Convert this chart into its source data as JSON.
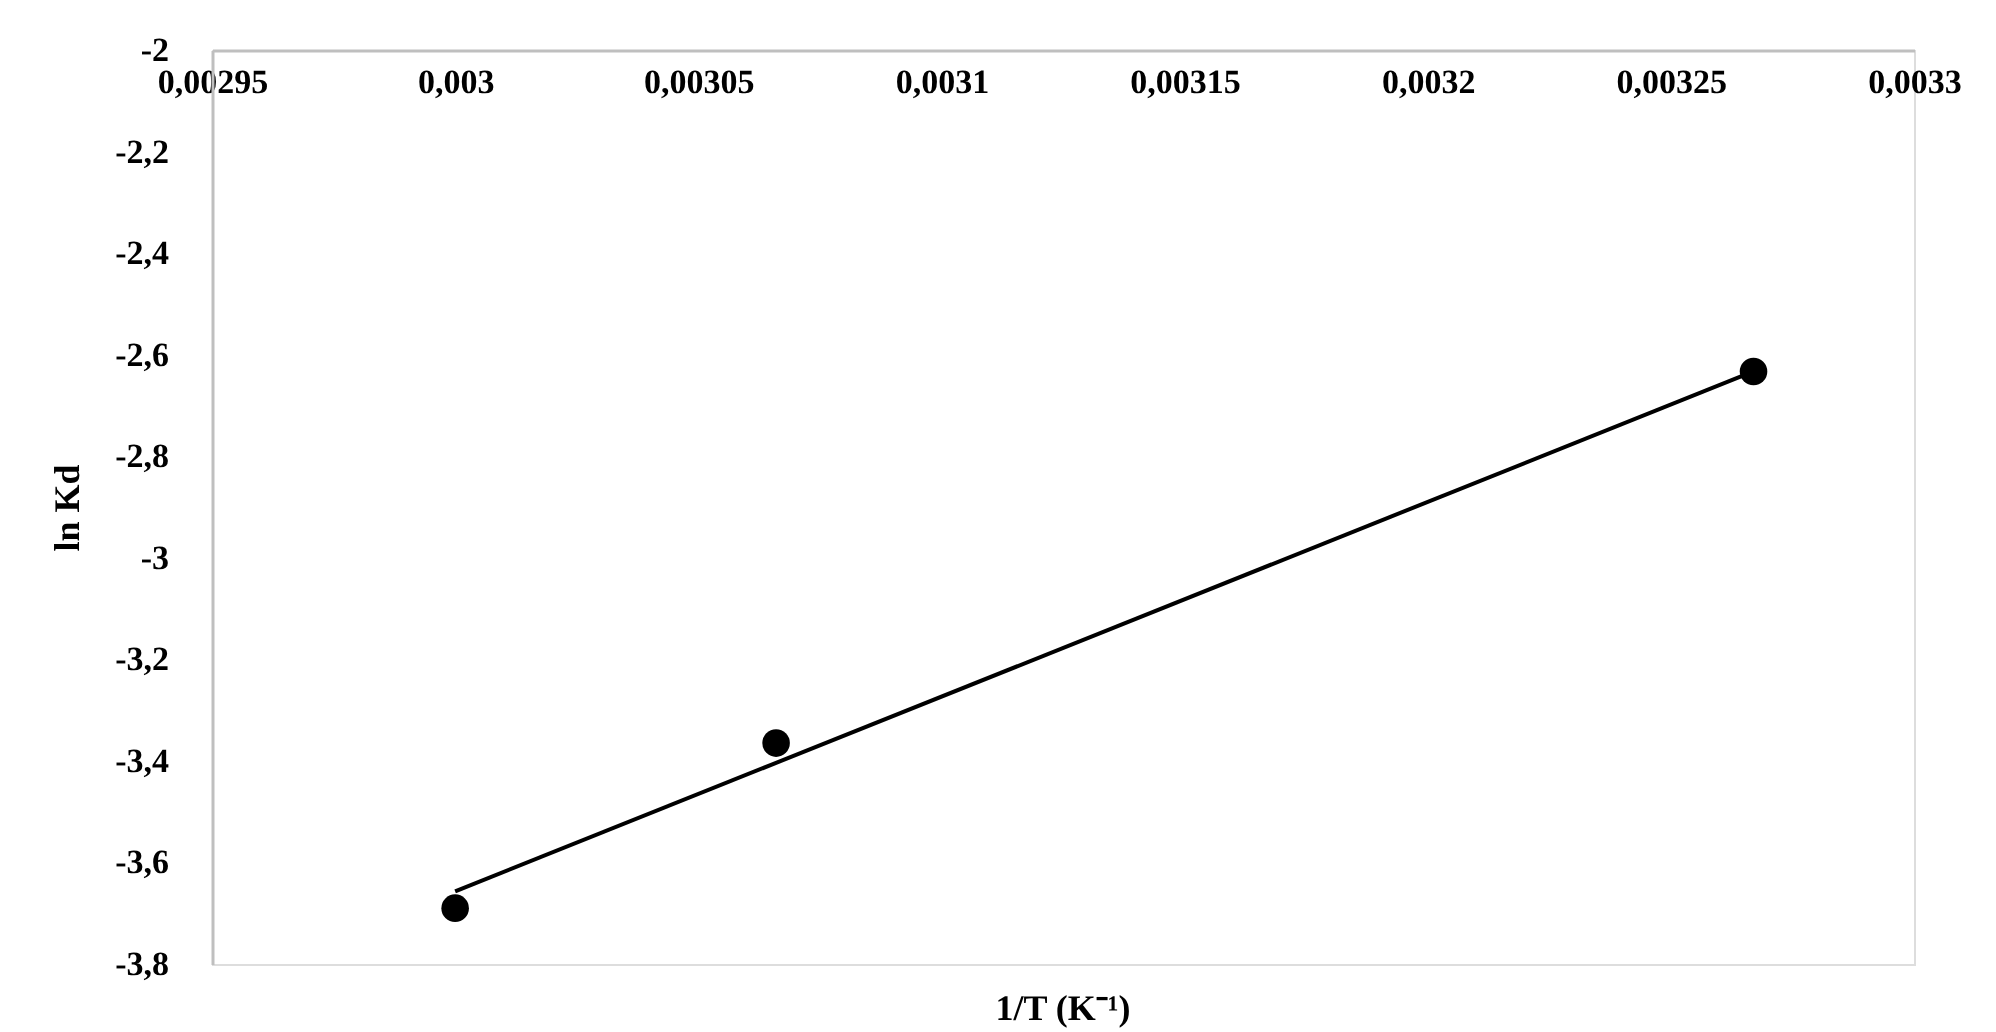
{
  "chart_data": {
    "type": "scatter",
    "xlabel": "1/T (K⁻¹)",
    "ylabel": "ln Kd",
    "x": [
      0.003,
      0.003066,
      0.003267
    ],
    "series": [
      {
        "color": "#000000",
        "marker": "circle",
        "values": [
          -3.69,
          -3.365,
          -2.633
        ]
      },
      {
        "type": "line",
        "color": "#000000",
        "line_style": "solid",
        "x": [
          0.003,
          0.003267
        ],
        "values": [
          -3.657,
          -2.633
        ]
      }
    ],
    "xlim": [
      0.00295,
      0.0033
    ],
    "xticks": [
      {
        "value": 0.00295,
        "label": "0,00295"
      },
      {
        "value": 0.003,
        "label": "0,003"
      },
      {
        "value": 0.00305,
        "label": "0,00305"
      },
      {
        "value": 0.0031,
        "label": "0,0031"
      },
      {
        "value": 0.00315,
        "label": "0,00315"
      },
      {
        "value": 0.0032,
        "label": "0,0032"
      },
      {
        "value": 0.00325,
        "label": "0,00325"
      },
      {
        "value": 0.0033,
        "label": "0,0033"
      }
    ],
    "ylim": [
      -3.8,
      -2
    ],
    "yticks": [
      -2,
      {
        "value": -2.2,
        "label": "-2,2"
      },
      {
        "value": -2.4,
        "label": "-2,4"
      },
      {
        "value": -2.6,
        "label": "-2,6"
      },
      {
        "value": -2.8,
        "label": "-2,8"
      },
      -3,
      {
        "value": -3.2,
        "label": "-3,2"
      },
      {
        "value": -3.4,
        "label": "-3,4"
      },
      {
        "value": -3.6,
        "label": "-3,6"
      },
      {
        "value": -3.8,
        "label": "-3,8"
      }
    ],
    "grid": false
  }
}
